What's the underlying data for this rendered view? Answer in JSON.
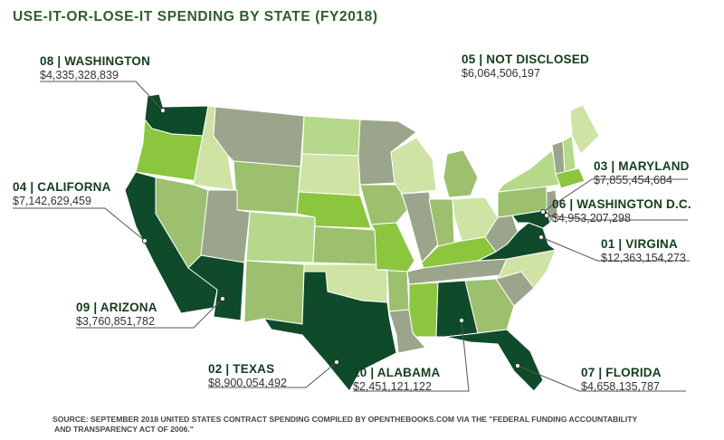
{
  "title": "USE-IT-OR-LOSE-IT SPENDING BY STATE (FY2018)",
  "colors": {
    "rank_dark": "#0f4a2b",
    "light_green": "#b5d88a",
    "mid_green": "#9cc06e",
    "bright_green": "#8cc63f",
    "gray_green": "#9aa58c",
    "pale_green": "#cfe3a4",
    "connector": "#555555"
  },
  "labels": [
    {
      "id": "washington",
      "name": "08 | WASHINGTON",
      "amount": "$4,335,328,839"
    },
    {
      "id": "not-disclosed",
      "name": "05 | NOT DISCLOSED",
      "amount": "$6,064,506,197"
    },
    {
      "id": "california",
      "name": "04 | CALIFORNA",
      "amount": "$7,142,629,459"
    },
    {
      "id": "maryland",
      "name": "03 | MARYLAND",
      "amount": "$7,855,454,684"
    },
    {
      "id": "washington-dc",
      "name": "06 | WASHINGTON D.C.",
      "amount": "$4,953,207,298"
    },
    {
      "id": "virgina",
      "name": "01 | VIRGINA",
      "amount": "$12,363,154,273"
    },
    {
      "id": "arizona",
      "name": "09 | ARIZONA",
      "amount": "$3,760,851,782"
    },
    {
      "id": "texas",
      "name": "02 | TEXAS",
      "amount": "$8,900,054,492"
    },
    {
      "id": "alabama",
      "name": "10 | ALABAMA",
      "amount": "$2,451,121,122"
    },
    {
      "id": "florida",
      "name": "07 | FLORIDA",
      "amount": "$4,658,135,787"
    }
  ],
  "source": {
    "line1": "SOURCE: SEPTEMBER 2018 UNITED STATES CONTRACT SPENDING COMPILED BY OPENTHEBOOKS.COM VIA THE \"FEDERAL FUNDING ACCOUNTABILITY",
    "line2": "AND TRANSPARENCY ACT OF 2006.\""
  }
}
